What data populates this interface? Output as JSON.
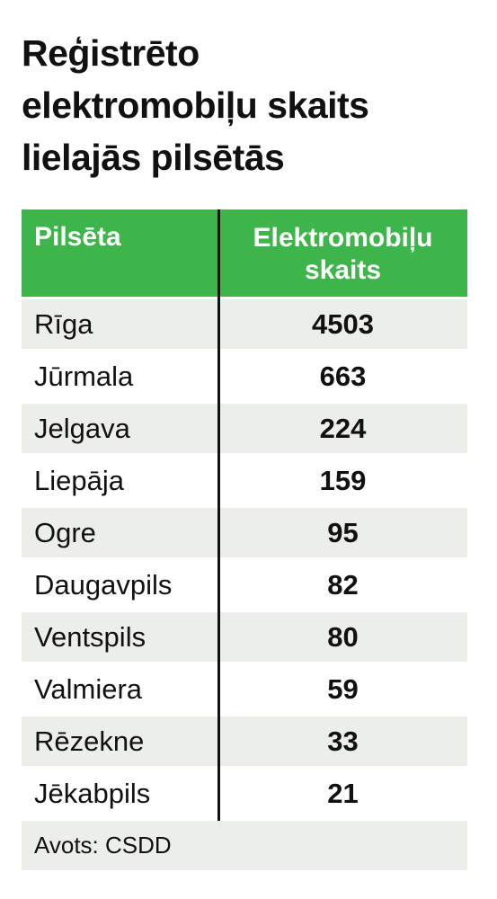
{
  "title": [
    "Reģistrēto",
    "elektromobiļu skaits",
    "lielajās pilsētās"
  ],
  "table": {
    "header": [
      "Pilsēta",
      [
        "Elektromobiļu",
        "skaits"
      ]
    ],
    "rows": [
      [
        "Rīga",
        4503
      ],
      [
        "Jūrmala",
        663
      ],
      [
        "Jelgava",
        224
      ],
      [
        "Liepāja",
        159
      ],
      [
        "Ogre",
        95
      ],
      [
        "Daugavpils",
        82
      ],
      [
        "Ventspils",
        80
      ],
      [
        "Valmiera",
        59
      ],
      [
        "Rēzekne",
        33
      ],
      [
        "Jēkabpils",
        21
      ]
    ]
  },
  "source": "Avots: CSDD"
}
